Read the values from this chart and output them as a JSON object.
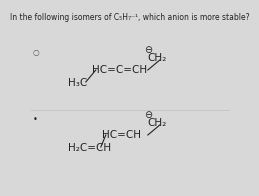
{
  "title": "In the following isomers of C₅H₇¯¹, which anion is more stable?",
  "title_fontsize": 5.8,
  "bg_color": "#d8d8d8",
  "text_color": "#222222"
}
